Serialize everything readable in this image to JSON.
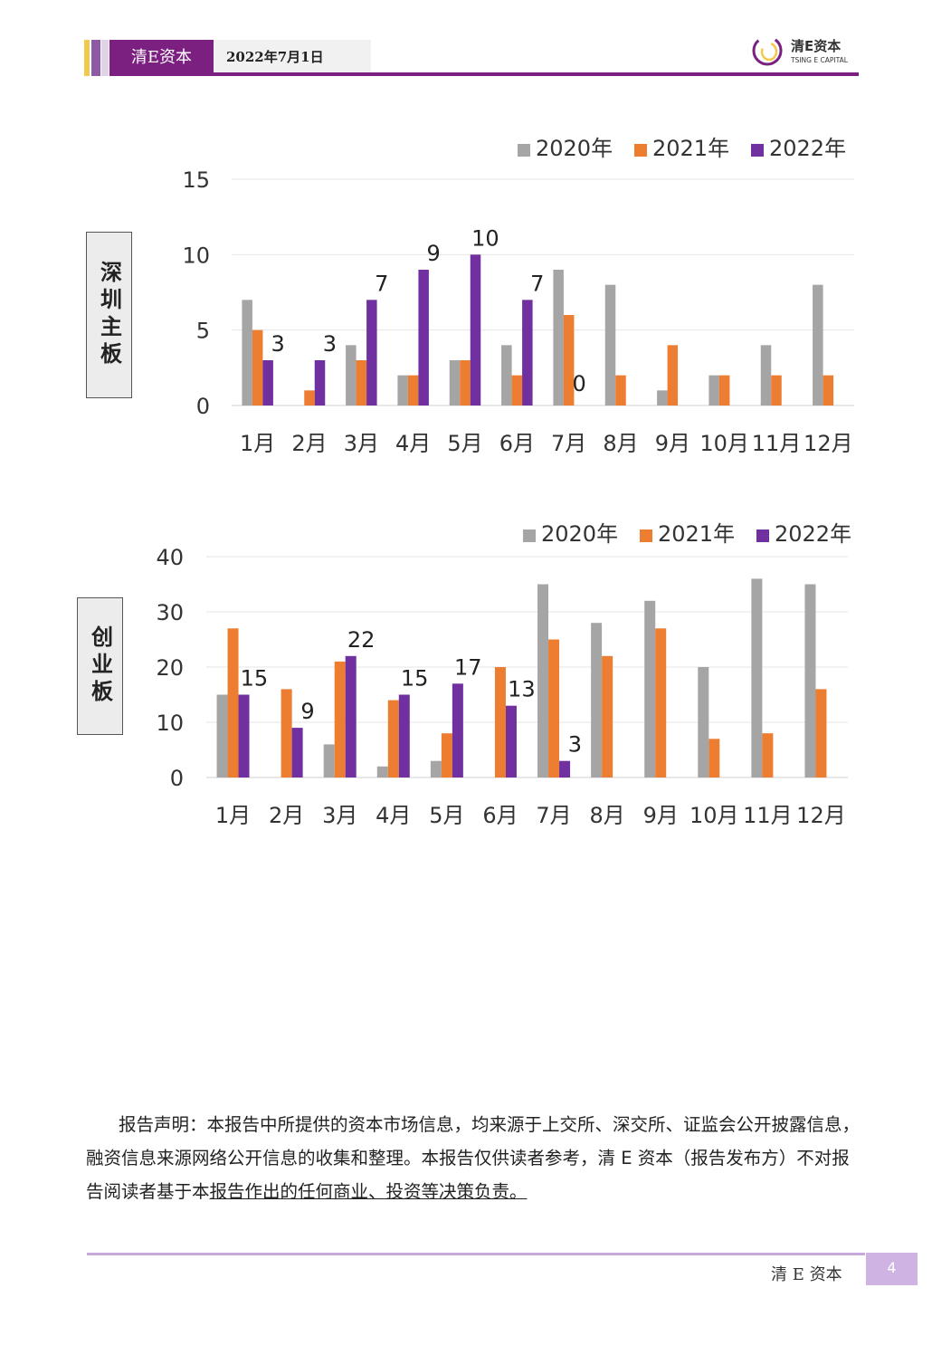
{
  "header": {
    "brand": "清E资本",
    "date": "2022年7月1日",
    "logo_cn": "清E资本",
    "logo_en": "TSING E CAPITAL"
  },
  "colors": {
    "brand_purple": "#7b1f80",
    "series_2020": "#a5a5a5",
    "series_2021": "#ed7d31",
    "series_2022": "#7030a0"
  },
  "chart_data": [
    {
      "type": "bar",
      "side_label": "深圳主板",
      "categories": [
        "1月",
        "2月",
        "3月",
        "4月",
        "5月",
        "6月",
        "7月",
        "8月",
        "9月",
        "10月",
        "11月",
        "12月"
      ],
      "series": [
        {
          "name": "2020年",
          "values": [
            7,
            0,
            4,
            2,
            3,
            4,
            9,
            8,
            1,
            2,
            4,
            8
          ]
        },
        {
          "name": "2021年",
          "values": [
            5,
            1,
            3,
            2,
            3,
            2,
            6,
            2,
            4,
            2,
            2,
            2
          ]
        },
        {
          "name": "2022年",
          "values": [
            3,
            3,
            7,
            9,
            10,
            7,
            0,
            null,
            null,
            null,
            null,
            null
          ],
          "data_labels": [
            "3",
            "3",
            "7",
            "9",
            "10",
            "7",
            "0"
          ]
        }
      ],
      "ylim": [
        0,
        15
      ],
      "yticks": [
        0,
        5,
        10,
        15
      ],
      "grid": true,
      "legend_position": "top-right"
    },
    {
      "type": "bar",
      "side_label": "创业板",
      "categories": [
        "1月",
        "2月",
        "3月",
        "4月",
        "5月",
        "6月",
        "7月",
        "8月",
        "9月",
        "10月",
        "11月",
        "12月"
      ],
      "series": [
        {
          "name": "2020年",
          "values": [
            15,
            0,
            6,
            2,
            3,
            0,
            35,
            28,
            32,
            20,
            36,
            35
          ]
        },
        {
          "name": "2021年",
          "values": [
            27,
            16,
            21,
            14,
            8,
            20,
            25,
            22,
            27,
            7,
            8,
            16
          ]
        },
        {
          "name": "2022年",
          "values": [
            15,
            9,
            22,
            15,
            17,
            13,
            3,
            null,
            null,
            null,
            null,
            null
          ],
          "data_labels": [
            "15",
            "9",
            "22",
            "15",
            "17",
            "13",
            "3"
          ]
        }
      ],
      "ylim": [
        0,
        40
      ],
      "yticks": [
        0,
        10,
        20,
        30,
        40
      ],
      "grid": true,
      "legend_position": "top-right"
    }
  ],
  "disclaimer": {
    "text_plain": "报告声明：本报告中所提供的资本市场信息，均来源于上交所、深交所、证监会公开披露信息，融资信息来源网络公开信息的收集和整理。本报告仅供读者参考，清 E 资本（报告发布方）不对报告阅读者基于本",
    "text_underlined": "报告作出的任何商业、投资等决策负责。"
  },
  "footer": {
    "brand": "清 E 资本",
    "page": "4"
  }
}
